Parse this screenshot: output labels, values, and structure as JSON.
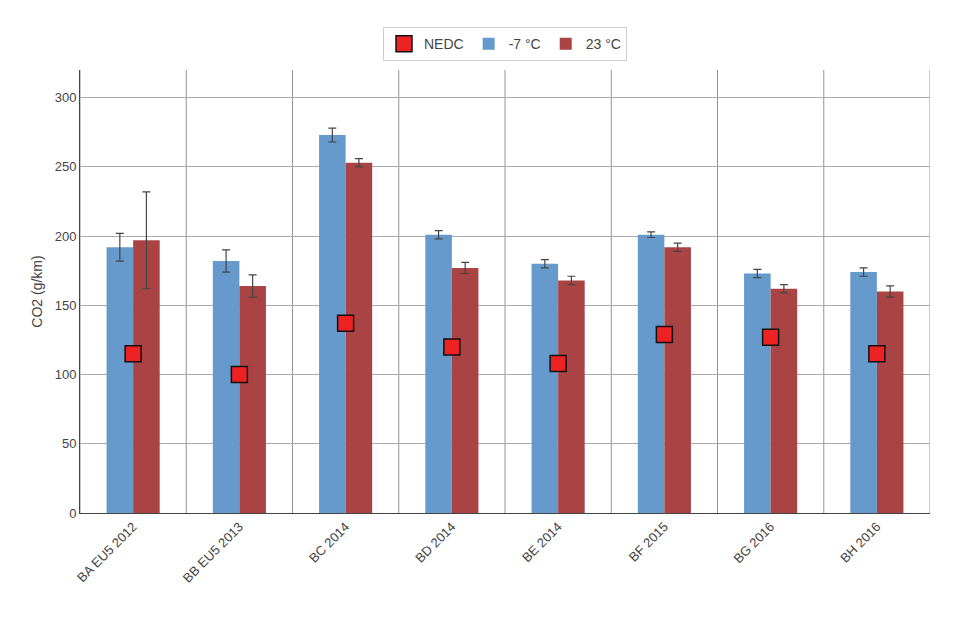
{
  "chart_data": {
    "type": "bar",
    "categories": [
      "BA EU5 2012",
      "BB EU5 2013",
      "BC 2014",
      "BD 2014",
      "BE 2014",
      "BF 2015",
      "BG 2016",
      "BH 2016"
    ],
    "series": [
      {
        "name": "NEDC",
        "type": "scatter",
        "marker": "square",
        "color": "#EE2222",
        "values": [
          115,
          100,
          137,
          120,
          108,
          129,
          127,
          115
        ]
      },
      {
        "name": "-7 °C",
        "type": "bar",
        "color": "#6699CC",
        "values": [
          192,
          182,
          273,
          201,
          180,
          201,
          173,
          174
        ],
        "errors": [
          10,
          8,
          5,
          3,
          3,
          2,
          3,
          3
        ]
      },
      {
        "name": "23 °C",
        "type": "bar",
        "color": "#AA4444",
        "values": [
          197,
          164,
          253,
          177,
          168,
          192,
          162,
          160
        ],
        "errors": [
          35,
          8,
          3,
          4,
          3,
          3,
          3,
          4
        ]
      }
    ],
    "ylabel": "CO2 (g/km)",
    "ylim": [
      0,
      320
    ],
    "yticks": [
      0,
      50,
      100,
      150,
      200,
      250,
      300
    ],
    "grid": true,
    "legend": "top"
  }
}
